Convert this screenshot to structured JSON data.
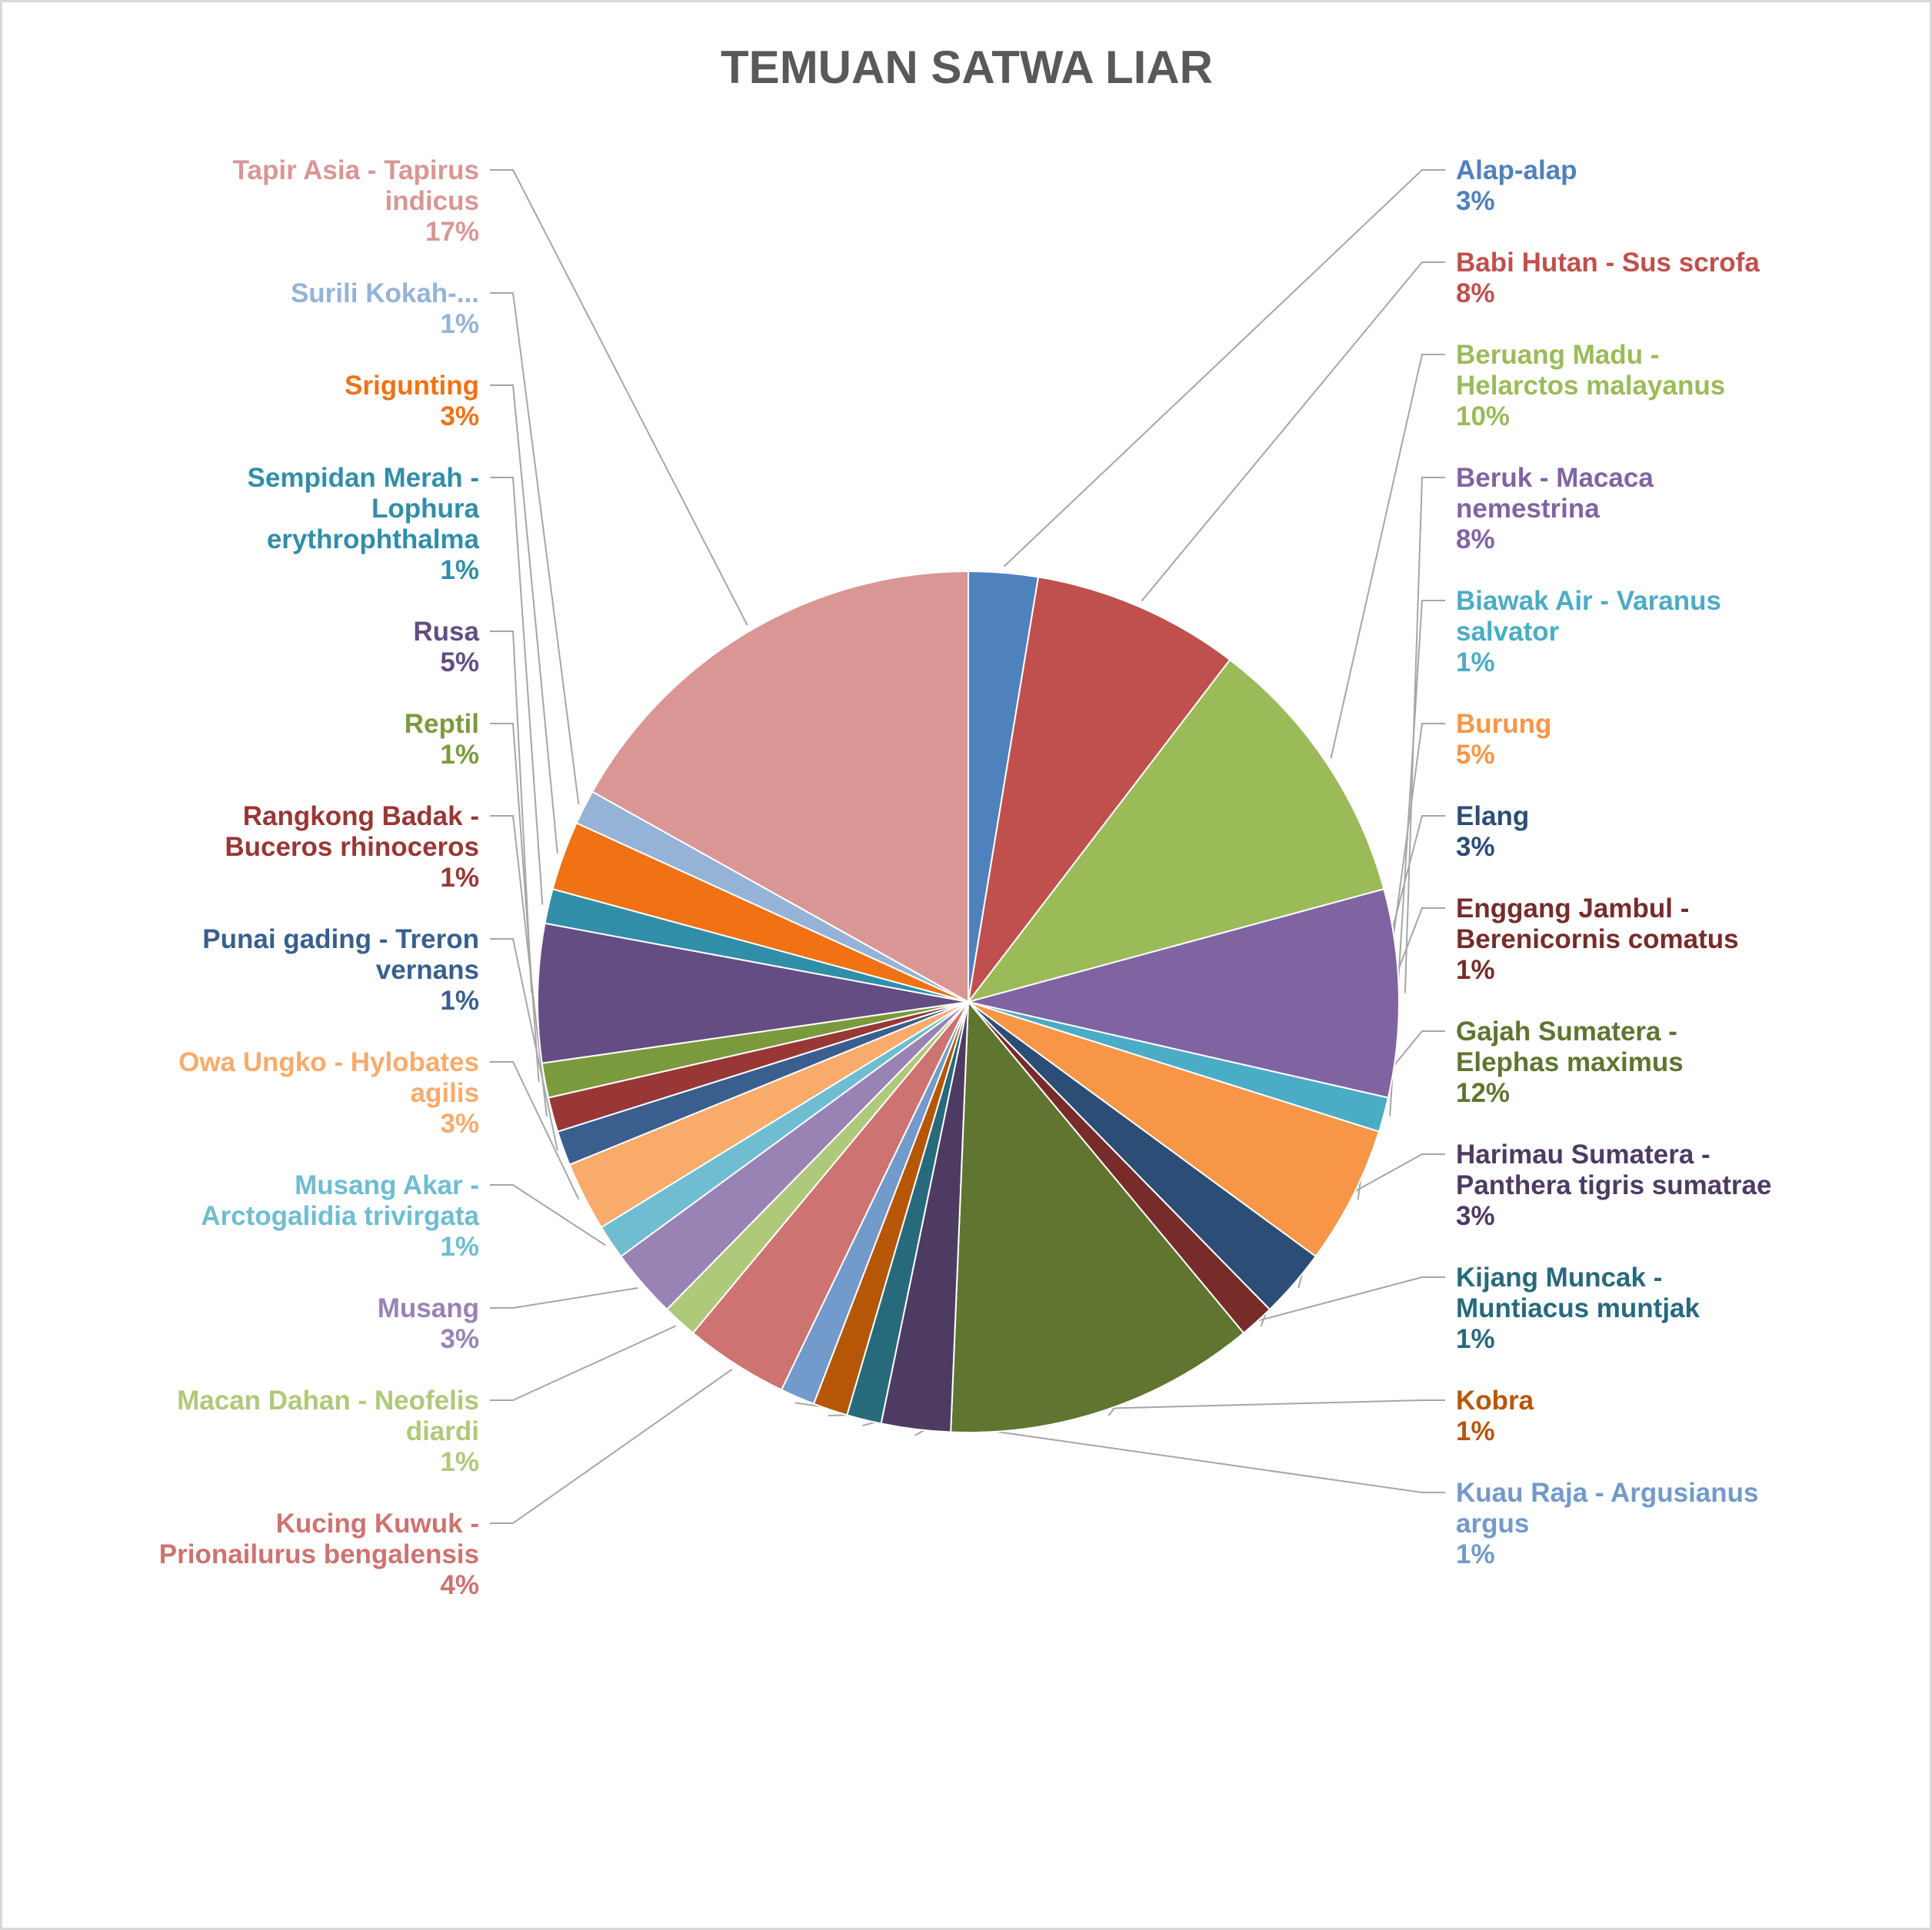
{
  "chart_data": {
    "type": "pie",
    "title": "TEMUAN SATWA LIAR",
    "categories": [
      "Alap-alap",
      "Babi Hutan - Sus scrofa",
      "Beruang Madu - Helarctos malayanus",
      "Beruk - Macaca nemestrina",
      "Biawak Air - Varanus salvator",
      "Burung",
      "Elang",
      "Enggang Jambul - Berenicornis comatus",
      "Gajah Sumatera - Elephas maximus",
      "Harimau Sumatera - Panthera tigris sumatrae",
      "Kijang Muncak - Muntiacus muntjak",
      "Kobra",
      "Kuau Raja - Argusianus argus",
      "Kucing Kuwuk - Prionailurus bengalensis",
      "Macan Dahan - Neofelis diardi",
      "Musang",
      "Musang Akar - Arctogalidia trivirgata",
      "Owa Ungko - Hylobates agilis",
      "Punai gading - Treron vernans",
      "Rangkong Badak - Buceros rhinoceros",
      "Reptil",
      "Rusa",
      "Sempidan Merah - Lophura erythrophthalma",
      "Srigunting",
      "Surili Kokah-...",
      "Tapir Asia - Tapirus indicus"
    ],
    "values": [
      2,
      6,
      8,
      6,
      1,
      4,
      2,
      1,
      9,
      2,
      1,
      1,
      1,
      3,
      1,
      2,
      1,
      2,
      1,
      1,
      1,
      4,
      1,
      2,
      1,
      13
    ],
    "percent_labels": [
      "3%",
      "8%",
      "10%",
      "8%",
      "1%",
      "5%",
      "3%",
      "1%",
      "12%",
      "3%",
      "1%",
      "1%",
      "1%",
      "4%",
      "1%",
      "3%",
      "1%",
      "3%",
      "1%",
      "1%",
      "1%",
      "5%",
      "1%",
      "3%",
      "1%",
      "17%"
    ],
    "label_lines": [
      [
        "Alap-alap"
      ],
      [
        "Babi Hutan - Sus scrofa"
      ],
      [
        "Beruang Madu -",
        "Helarctos malayanus"
      ],
      [
        "Beruk - Macaca",
        "nemestrina"
      ],
      [
        "Biawak Air - Varanus",
        "salvator"
      ],
      [
        "Burung"
      ],
      [
        "Elang"
      ],
      [
        "Enggang Jambul -",
        "Berenicornis comatus"
      ],
      [
        "Gajah Sumatera -",
        "Elephas maximus"
      ],
      [
        "Harimau Sumatera -",
        "Panthera tigris sumatrae"
      ],
      [
        "Kijang Muncak -",
        "Muntiacus muntjak"
      ],
      [
        "Kobra"
      ],
      [
        "Kuau Raja - Argusianus",
        "argus"
      ],
      [
        "Kucing Kuwuk -",
        "Prionailurus bengalensis"
      ],
      [
        "Macan Dahan - Neofelis",
        "diardi"
      ],
      [
        "Musang"
      ],
      [
        "Musang Akar -",
        "Arctogalidia trivirgata"
      ],
      [
        "Owa Ungko - Hylobates",
        "agilis"
      ],
      [
        "Punai gading - Treron",
        "vernans"
      ],
      [
        "Rangkong Badak -",
        "Buceros rhinoceros"
      ],
      [
        "Reptil"
      ],
      [
        "Rusa"
      ],
      [
        "Sempidan Merah -",
        "Lophura",
        "erythrophthalma"
      ],
      [
        "Srigunting"
      ],
      [
        "Surili Kokah-..."
      ],
      [
        "Tapir Asia - Tapirus",
        "indicus"
      ]
    ],
    "colors": [
      "#4F81BD",
      "#C0504D",
      "#9BBB59",
      "#8064A2",
      "#4BACC6",
      "#F79646",
      "#2C4D75",
      "#772C2A",
      "#5F7530",
      "#4D3B62",
      "#276A7C",
      "#B65708",
      "#729ACA",
      "#CD7371",
      "#AFC97A",
      "#9983B5",
      "#6FBDD1",
      "#F9AB6B",
      "#3A5F8E",
      "#983735",
      "#7B9A3E",
      "#644D83",
      "#318EA8",
      "#F07214",
      "#95B3D7",
      "#D99694"
    ],
    "legend": "none",
    "start_angle_deg": 0,
    "direction": "clockwise"
  }
}
